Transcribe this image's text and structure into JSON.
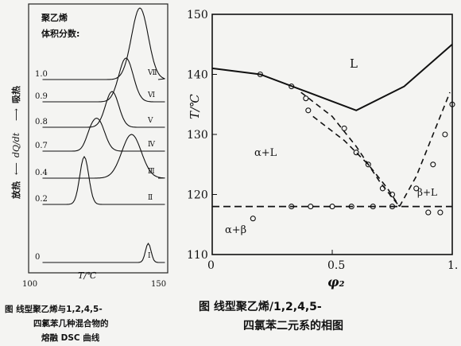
{
  "chart_data": [
    {
      "type": "line",
      "legend": {
        "title_line1": "聚乙烯",
        "title_line2": "体积分数:"
      },
      "xlabel": "T/℃",
      "ylabel_left": "放热",
      "ylabel_mid": "dQ/dt",
      "ylabel_right": "吸热",
      "x_ticks": [
        {
          "label": "100",
          "value": 100
        },
        {
          "label": "150",
          "value": 150
        }
      ],
      "xlim": [
        100,
        150
      ],
      "series": [
        {
          "name": "1.0",
          "roman": "Ⅶ",
          "peak_T": 140
        },
        {
          "name": "0.9",
          "roman": "Ⅵ",
          "peak_T": 135
        },
        {
          "name": "0.8",
          "roman": "Ⅴ",
          "peak_T": 130
        },
        {
          "name": "0.7",
          "roman": "Ⅳ",
          "peak_T": 125
        },
        {
          "name": "0.4",
          "roman": "Ⅲ",
          "peak_T": 137
        },
        {
          "name": "0.2",
          "roman": "Ⅱ",
          "peak_T": 120
        },
        {
          "name": "0",
          "roman": "Ⅰ",
          "peak_T": 143
        }
      ],
      "caption_lines": [
        "图        线型聚乙烯与1,2,4,5-",
        "四氯苯几种混合物的",
        "熔融 DSC 曲线"
      ]
    },
    {
      "type": "scatter",
      "xlabel": "φ₂",
      "ylabel": "T/℃",
      "xlim": [
        0,
        1.0
      ],
      "ylim": [
        110,
        150
      ],
      "x_ticks": [
        {
          "label": "0",
          "value": 0
        },
        {
          "label": "0.5",
          "value": 0.5
        },
        {
          "label": "1.",
          "value": 1.0
        }
      ],
      "y_ticks": [
        {
          "label": "110",
          "value": 110
        },
        {
          "label": "120",
          "value": 120
        },
        {
          "label": "130",
          "value": 130
        },
        {
          "label": "140",
          "value": 140
        },
        {
          "label": "150",
          "value": 150
        }
      ],
      "region_labels": {
        "top": "L",
        "left_mid": "α+L",
        "bottom": "α+β",
        "right": "β+L"
      },
      "liquidus_solid": [
        [
          0,
          141
        ],
        [
          0.2,
          140
        ],
        [
          0.4,
          137
        ],
        [
          0.6,
          134
        ],
        [
          0.8,
          138
        ],
        [
          1.0,
          145
        ]
      ],
      "dashed_curve_a": [
        [
          0.42,
          133
        ],
        [
          0.55,
          129
        ],
        [
          0.65,
          125
        ],
        [
          0.73,
          121
        ],
        [
          0.78,
          118
        ]
      ],
      "dashed_curve_b": [
        [
          0.37,
          137
        ],
        [
          0.5,
          133
        ],
        [
          0.6,
          128
        ],
        [
          0.7,
          122
        ],
        [
          0.78,
          118
        ]
      ],
      "dashed_curve_right": [
        [
          0.78,
          118
        ],
        [
          0.85,
          123
        ],
        [
          0.9,
          128
        ],
        [
          0.95,
          133
        ],
        [
          0.99,
          137
        ]
      ],
      "eutectic_T": 118,
      "points_upper": [
        [
          0.2,
          140
        ],
        [
          0.33,
          138
        ],
        [
          0.39,
          136
        ],
        [
          0.4,
          134
        ],
        [
          0.55,
          131
        ],
        [
          0.6,
          127
        ],
        [
          0.65,
          125
        ],
        [
          0.71,
          121
        ],
        [
          0.75,
          120
        ],
        [
          0.85,
          121
        ],
        [
          0.92,
          125
        ],
        [
          0.97,
          130
        ],
        [
          1.0,
          135
        ]
      ],
      "points_lower": [
        [
          0.17,
          116
        ],
        [
          0.33,
          118
        ],
        [
          0.41,
          118
        ],
        [
          0.5,
          118
        ],
        [
          0.58,
          118
        ],
        [
          0.67,
          118
        ],
        [
          0.75,
          118
        ],
        [
          0.9,
          117
        ],
        [
          0.95,
          117
        ]
      ],
      "caption_lines": [
        "图        线型聚乙烯/1,2,4,5-",
        "四氯苯二元系的相图"
      ]
    }
  ]
}
